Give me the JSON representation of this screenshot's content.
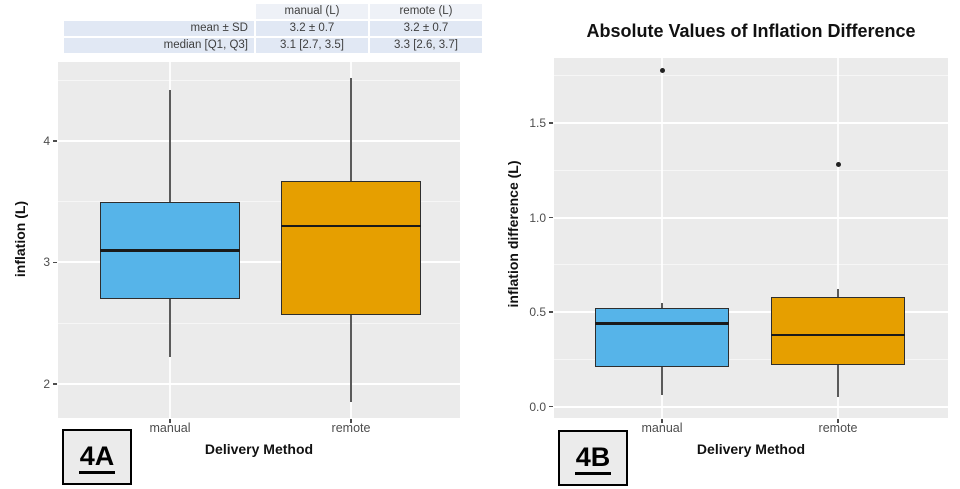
{
  "colors": {
    "manual_box": "#56B4E9",
    "remote_box": "#E69F00",
    "panel_background": "#EBEBEB",
    "gridline": "#FFFFFF",
    "box_border": "#2E2E2E",
    "tick_text": "#4D4D4D",
    "table_header_bg": "#EEF1F7",
    "table_row_bg": "#E1E8F4"
  },
  "stats_table": {
    "rows": [
      [
        "",
        "manual (L)",
        "remote (L)"
      ],
      [
        "mean ± SD",
        "3.2 ± 0.7",
        "3.2 ± 0.7"
      ],
      [
        "median [Q1, Q3]",
        "3.1 [2.7, 3.5]",
        "3.3 [2.6, 3.7]"
      ]
    ]
  },
  "figure_labels": {
    "left": "4A",
    "right": "4B"
  },
  "chart_data": [
    {
      "type": "boxplot",
      "title": "",
      "xlabel": "Delivery Method",
      "ylabel": "inflation (L)",
      "categories": [
        "manual",
        "remote"
      ],
      "ylim": [
        1.72,
        4.65
      ],
      "yticks": [
        2,
        3,
        4
      ],
      "ytick_labels": [
        "2",
        "3",
        "4"
      ],
      "yticks_minor": [
        2.5,
        3.5,
        4.5
      ],
      "grid": "on",
      "series": [
        {
          "category": "manual",
          "color": "#56B4E9",
          "whisker_low": 2.22,
          "q1": 2.7,
          "median": 3.1,
          "q3": 3.5,
          "whisker_high": 4.42,
          "outliers": []
        },
        {
          "category": "remote",
          "color": "#E69F00",
          "whisker_low": 1.85,
          "q1": 2.57,
          "median": 3.3,
          "q3": 3.67,
          "whisker_high": 4.52,
          "outliers": []
        }
      ]
    },
    {
      "type": "boxplot",
      "title": "Absolute Values of Inflation Difference",
      "xlabel": "Delivery Method",
      "ylabel": "inflation difference (L)",
      "categories": [
        "manual",
        "remote"
      ],
      "ylim": [
        -0.06,
        1.845
      ],
      "yticks": [
        0,
        0.5,
        1.0,
        1.5
      ],
      "ytick_labels": [
        "0.0",
        "0.5",
        "1.0",
        "1.5"
      ],
      "yticks_minor": [
        0.25,
        0.75,
        1.25,
        1.75
      ],
      "grid": "on",
      "series": [
        {
          "category": "manual",
          "color": "#56B4E9",
          "whisker_low": 0.06,
          "q1": 0.21,
          "median": 0.44,
          "q3": 0.52,
          "whisker_high": 0.55,
          "outliers": [
            1.78
          ]
        },
        {
          "category": "remote",
          "color": "#E69F00",
          "whisker_low": 0.05,
          "q1": 0.22,
          "median": 0.38,
          "q3": 0.58,
          "whisker_high": 0.62,
          "outliers": [
            1.28
          ]
        }
      ]
    }
  ]
}
